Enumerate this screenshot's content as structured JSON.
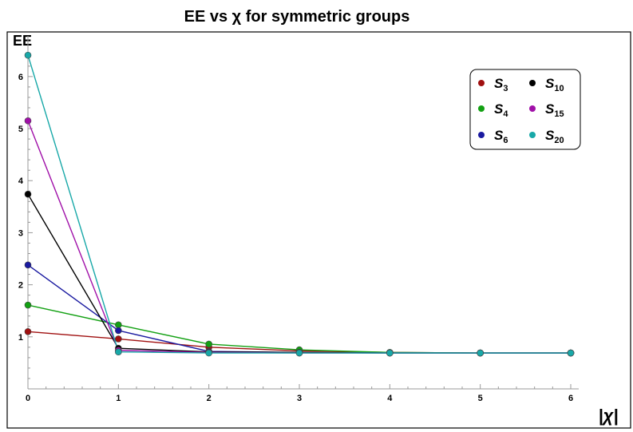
{
  "chart_data": {
    "type": "line",
    "title": "EE vs χ for symmetric groups",
    "ylabel": "EE",
    "xlabel": "|χ|",
    "x": [
      0,
      1,
      2,
      3,
      4,
      5,
      6
    ],
    "xlim": [
      0,
      6
    ],
    "ylim": [
      0,
      6.55
    ],
    "x_ticks": [
      0,
      1,
      2,
      3,
      4,
      5,
      6
    ],
    "y_ticks": [
      1,
      2,
      3,
      4,
      5,
      6
    ],
    "grid": false,
    "legend_position": "top-right",
    "series": [
      {
        "name": "S",
        "subscript": "3",
        "color": "#a01010",
        "values": [
          1.1,
          0.96,
          0.8,
          0.73,
          0.7,
          0.69,
          0.69
        ]
      },
      {
        "name": "S",
        "subscript": "4",
        "color": "#12a012",
        "values": [
          1.61,
          1.23,
          0.86,
          0.75,
          0.7,
          0.69,
          0.69
        ]
      },
      {
        "name": "S",
        "subscript": "6",
        "color": "#1a1aa0",
        "values": [
          2.38,
          1.12,
          0.72,
          0.7,
          0.69,
          0.69,
          0.69
        ]
      },
      {
        "name": "S",
        "subscript": "10",
        "color": "#000000",
        "values": [
          3.74,
          0.78,
          0.71,
          0.7,
          0.69,
          0.69,
          0.69
        ]
      },
      {
        "name": "S",
        "subscript": "15",
        "color": "#a010a8",
        "values": [
          5.15,
          0.74,
          0.7,
          0.69,
          0.69,
          0.69,
          0.69
        ]
      },
      {
        "name": "S",
        "subscript": "20",
        "color": "#18a8a8",
        "values": [
          6.41,
          0.71,
          0.69,
          0.69,
          0.69,
          0.69,
          0.69
        ]
      }
    ]
  }
}
